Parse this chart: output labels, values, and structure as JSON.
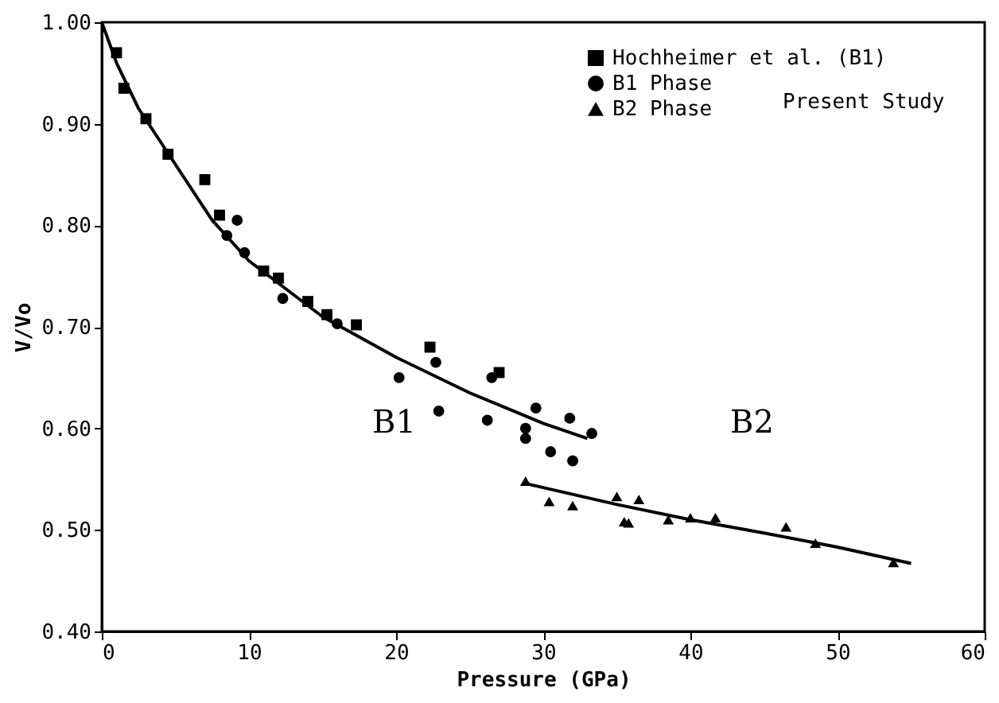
{
  "chart_data": {
    "type": "scatter",
    "xlabel": "Pressure (GPa)",
    "ylabel": "V/Vo",
    "xlim": [
      0,
      60
    ],
    "ylim": [
      0.4,
      1.0
    ],
    "xticks": [
      0,
      10,
      20,
      30,
      40,
      50,
      60
    ],
    "yticks": [
      {
        "value": 0.4,
        "label": "0.40"
      },
      {
        "value": 0.5,
        "label": "0.50"
      },
      {
        "value": 0.6,
        "label": "0.60"
      },
      {
        "value": 0.7,
        "label": "0.70"
      },
      {
        "value": 0.8,
        "label": "0.80"
      },
      {
        "value": 0.9,
        "label": "0.90"
      },
      {
        "value": 1.0,
        "label": "1.00"
      }
    ],
    "grid": false,
    "legend": "top right",
    "annotations": [
      "Present Study",
      "B1",
      "B2"
    ],
    "series": [
      {
        "name": "Hochheimer et al. (B1)",
        "marker": "square",
        "color": "#000000",
        "x": [
          1,
          1.5,
          3,
          4.5,
          7,
          8,
          11,
          12,
          14,
          15.3,
          17.3,
          22.3,
          27
        ],
        "values": [
          0.97,
          0.935,
          0.905,
          0.87,
          0.845,
          0.81,
          0.755,
          0.748,
          0.725,
          0.712,
          0.702,
          0.68,
          0.655
        ]
      },
      {
        "name": "B1 Phase",
        "marker": "circle",
        "color": "#000000",
        "x": [
          8.5,
          9.2,
          9.7,
          12.3,
          16,
          20.2,
          22.7,
          22.9,
          26.2,
          26.5,
          28.8,
          28.8,
          29.5,
          30.5,
          31.8,
          32,
          33.3
        ],
        "values": [
          0.79,
          0.805,
          0.773,
          0.728,
          0.703,
          0.65,
          0.665,
          0.617,
          0.608,
          0.65,
          0.6,
          0.59,
          0.62,
          0.577,
          0.61,
          0.568,
          0.595
        ]
      },
      {
        "name": "B2 Phase",
        "marker": "triangle",
        "color": "#000000",
        "x": [
          28.8,
          30.4,
          32,
          35,
          35.5,
          35.8,
          36.5,
          38.5,
          40,
          41.7,
          46.5,
          48.5,
          53.8
        ],
        "values": [
          0.548,
          0.528,
          0.524,
          0.533,
          0.508,
          0.507,
          0.53,
          0.51,
          0.512,
          0.512,
          0.503,
          0.487,
          0.468
        ]
      },
      {
        "type": "line",
        "color": "#000000",
        "line_style": "solid",
        "x": [
          0,
          1,
          2.5,
          5,
          7.5,
          10,
          15,
          20,
          25,
          30,
          33
        ],
        "values": [
          1.0,
          0.96,
          0.915,
          0.86,
          0.805,
          0.765,
          0.71,
          0.67,
          0.635,
          0.605,
          0.59
        ]
      },
      {
        "type": "line",
        "color": "#000000",
        "line_style": "solid",
        "x": [
          29,
          35,
          40,
          45,
          50,
          55
        ],
        "values": [
          0.545,
          0.525,
          0.51,
          0.497,
          0.483,
          0.467
        ]
      }
    ]
  }
}
